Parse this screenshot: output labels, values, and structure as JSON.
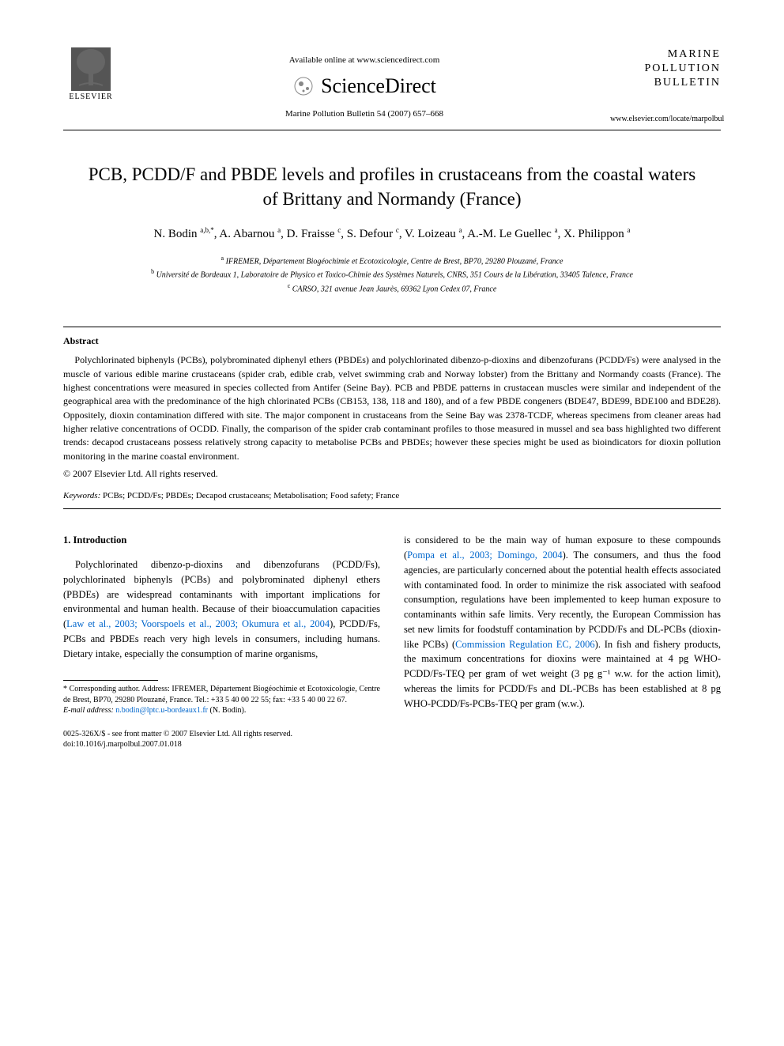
{
  "header": {
    "available_online": "Available online at www.sciencedirect.com",
    "sciencedirect": "ScienceDirect",
    "journal_ref": "Marine Pollution Bulletin 54 (2007) 657–668",
    "elsevier": "ELSEVIER",
    "journal_title_l1": "MARINE",
    "journal_title_l2": "POLLUTION",
    "journal_title_l3": "BULLETIN",
    "journal_url": "www.elsevier.com/locate/marpolbul"
  },
  "article": {
    "title": "PCB, PCDD/F and PBDE levels and profiles in crustaceans from the coastal waters of Brittany and Normandy (France)",
    "authors_html": "N. Bodin <sup>a,b,*</sup>, A. Abarnou <sup>a</sup>, D. Fraisse <sup>c</sup>, S. Defour <sup>c</sup>, V. Loizeau <sup>a</sup>, A.-M. Le Guellec <sup>a</sup>, X. Philippon <sup>a</sup>",
    "affiliations": {
      "a": "IFREMER, Département Biogéochimie et Ecotoxicologie, Centre de Brest, BP70, 29280 Plouzané, France",
      "b": "Université de Bordeaux 1, Laboratoire de Physico et Toxico-Chimie des Systèmes Naturels, CNRS, 351 Cours de la Libération, 33405 Talence, France",
      "c": "CARSO, 321 avenue Jean Jaurès, 69362 Lyon Cedex 07, France"
    }
  },
  "abstract": {
    "heading": "Abstract",
    "text": "Polychlorinated biphenyls (PCBs), polybrominated diphenyl ethers (PBDEs) and polychlorinated dibenzo-p-dioxins and dibenzofurans (PCDD/Fs) were analysed in the muscle of various edible marine crustaceans (spider crab, edible crab, velvet swimming crab and Norway lobster) from the Brittany and Normandy coasts (France). The highest concentrations were measured in species collected from Antifer (Seine Bay). PCB and PBDE patterns in crustacean muscles were similar and independent of the geographical area with the predominance of the high chlorinated PCBs (CB153, 138, 118 and 180), and of a few PBDE congeners (BDE47, BDE99, BDE100 and BDE28). Oppositely, dioxin contamination differed with site. The major component in crustaceans from the Seine Bay was 2378-TCDF, whereas specimens from cleaner areas had higher relative concentrations of OCDD. Finally, the comparison of the spider crab contaminant profiles to those measured in mussel and sea bass highlighted two different trends: decapod crustaceans possess relatively strong capacity to metabolise PCBs and PBDEs; however these species might be used as bioindicators for dioxin pollution monitoring in the marine coastal environment.",
    "copyright": "© 2007 Elsevier Ltd. All rights reserved."
  },
  "keywords": {
    "label": "Keywords:",
    "text": "PCBs; PCDD/Fs; PBDEs; Decapod crustaceans; Metabolisation; Food safety; France"
  },
  "body": {
    "section_heading": "1. Introduction",
    "col1_p1_a": "Polychlorinated dibenzo-p-dioxins and dibenzofurans (PCDD/Fs), polychlorinated biphenyls (PCBs) and polybrominated diphenyl ethers (PBDEs) are widespread contaminants with important implications for environmental and human health. Because of their bioaccumulation capacities (",
    "col1_link1": "Law et al., 2003; Voorspoels et al., 2003; Okumura et al., 2004",
    "col1_p1_b": "), PCDD/Fs, PCBs and PBDEs reach very high levels in consumers, including humans. Dietary intake, especially the consumption of marine organisms,",
    "col2_p1_a": "is considered to be the main way of human exposure to these compounds (",
    "col2_link1": "Pompa et al., 2003; Domingo, 2004",
    "col2_p1_b": "). The consumers, and thus the food agencies, are particularly concerned about the potential health effects associated with contaminated food. In order to minimize the risk associated with seafood consumption, regulations have been implemented to keep human exposure to contaminants within safe limits. Very recently, the European Commission has set new limits for foodstuff contamination by PCDD/Fs and DL-PCBs (dioxin-like PCBs) (",
    "col2_link2": "Commission Regulation EC, 2006",
    "col2_p1_c": "). In fish and fishery products, the maximum concentrations for dioxins were maintained at 4 pg WHO-PCDD/Fs-TEQ per gram of wet weight (3 pg g⁻¹ w.w. for the action limit), whereas the limits for PCDD/Fs and DL-PCBs has been established at 8 pg WHO-PCDD/Fs-PCBs-TEQ per gram (w.w.)."
  },
  "footnote": {
    "corresponding": "* Corresponding author. Address: IFREMER, Département Biogéochimie et Ecotoxicologie, Centre de Brest, BP70, 29280 Plouzané, France. Tel.: +33 5 40 00 22 55; fax: +33 5 40 00 22 67.",
    "email_label": "E-mail address:",
    "email": "n.bodin@lptc.u-bordeaux1.fr",
    "email_author": "(N. Bodin)."
  },
  "footer": {
    "issn": "0025-326X/$ - see front matter © 2007 Elsevier Ltd. All rights reserved.",
    "doi": "doi:10.1016/j.marpolbul.2007.01.018"
  },
  "colors": {
    "link": "#0066cc",
    "text": "#000000",
    "bg": "#ffffff"
  }
}
